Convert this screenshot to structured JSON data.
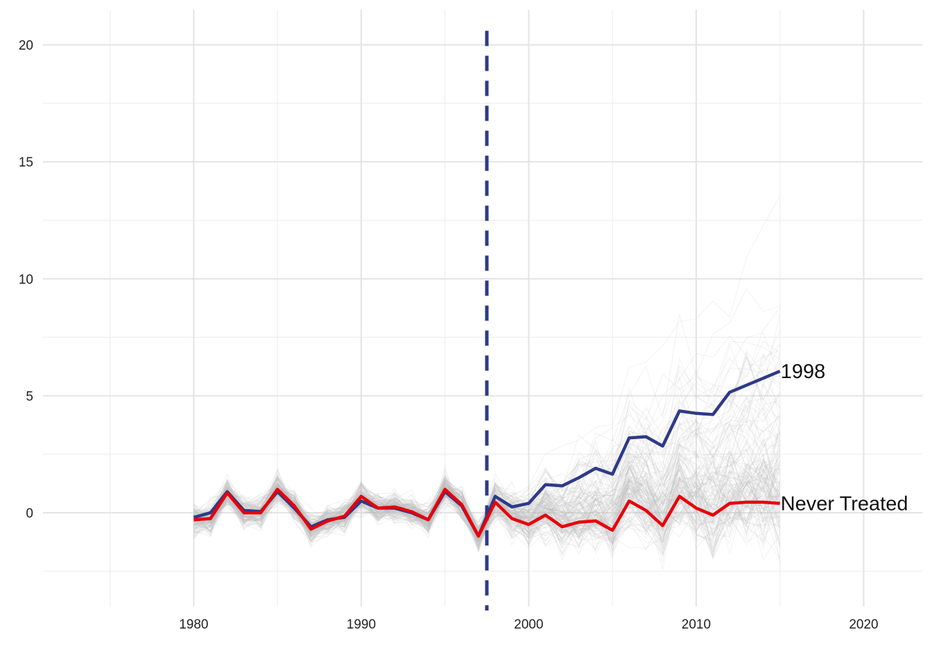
{
  "chart_data": {
    "type": "line",
    "title": "",
    "xlabel": "",
    "ylabel": "",
    "xlim": [
      1971,
      2023.5
    ],
    "ylim": [
      -4,
      21.5
    ],
    "x_ticks": [
      1980,
      1990,
      2000,
      2010,
      2020
    ],
    "x_tick_labels": [
      "1980",
      "1990",
      "2000",
      "2010",
      "2020"
    ],
    "x_minor_ticks": [
      1975,
      1985,
      1995,
      2005,
      2015
    ],
    "y_ticks": [
      0,
      5,
      10,
      15,
      20
    ],
    "y_tick_labels": [
      "0",
      "5",
      "10",
      "15",
      "20"
    ],
    "y_minor_ticks": [
      -2.5,
      2.5,
      7.5,
      12.5,
      17.5
    ],
    "grid": true,
    "treatment_line_x": 1997.5,
    "x": [
      1980,
      1981,
      1982,
      1983,
      1984,
      1985,
      1986,
      1987,
      1988,
      1989,
      1990,
      1991,
      1992,
      1993,
      1994,
      1995,
      1996,
      1997,
      1998,
      1999,
      2000,
      2001,
      2002,
      2003,
      2004,
      2005,
      2006,
      2007,
      2008,
      2009,
      2010,
      2011,
      2012,
      2013,
      2014,
      2015
    ],
    "series": [
      {
        "name": "1998",
        "color": "#2E3A87",
        "values": [
          -0.2,
          0.0,
          0.9,
          0.1,
          0.05,
          0.9,
          0.2,
          -0.6,
          -0.3,
          -0.2,
          0.5,
          0.2,
          0.2,
          0.0,
          -0.3,
          0.9,
          0.3,
          -1.0,
          0.7,
          0.25,
          0.4,
          1.2,
          1.15,
          1.5,
          1.9,
          1.65,
          3.2,
          3.25,
          2.85,
          4.35,
          4.25,
          4.2,
          5.15,
          5.45,
          5.75,
          6.05
        ]
      },
      {
        "name": "Never Treated",
        "color": "#E8000B",
        "values": [
          -0.3,
          -0.25,
          0.85,
          0.0,
          0.0,
          1.0,
          0.3,
          -0.7,
          -0.35,
          -0.15,
          0.7,
          0.2,
          0.25,
          0.05,
          -0.3,
          1.0,
          0.35,
          -1.0,
          0.45,
          -0.25,
          -0.5,
          -0.1,
          -0.6,
          -0.4,
          -0.35,
          -0.75,
          0.5,
          0.1,
          -0.55,
          0.7,
          0.2,
          -0.1,
          0.4,
          0.45,
          0.45,
          0.4
        ]
      }
    ],
    "background_series_count": 150,
    "background_color": "#BBBBBB"
  },
  "labels": {
    "series_1998": "1998",
    "series_never": "Never Treated"
  }
}
